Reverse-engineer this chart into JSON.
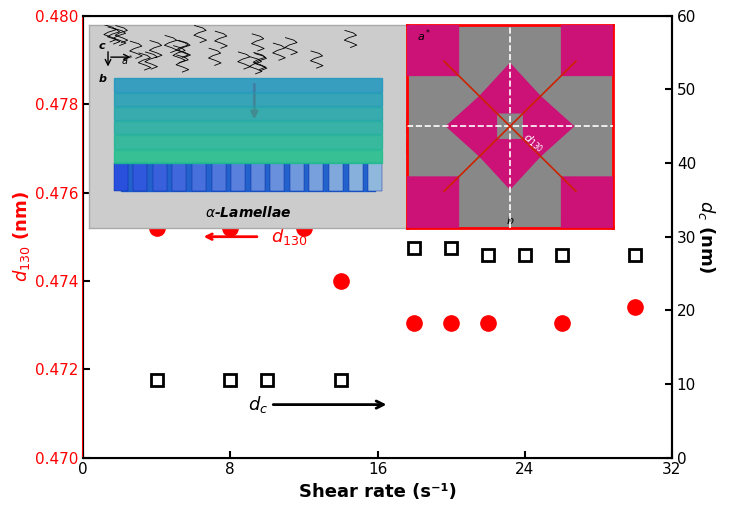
{
  "shear_rate_d130": [
    4,
    8,
    12,
    14,
    18,
    20,
    22,
    26,
    30
  ],
  "d130_values": [
    0.4752,
    0.4752,
    0.4752,
    0.474,
    0.47305,
    0.47305,
    0.47305,
    0.47305,
    0.4734
  ],
  "shear_rate_dc": [
    4,
    8,
    10,
    14,
    18,
    20,
    22,
    24,
    26,
    30
  ],
  "dc_values": [
    10.5,
    10.5,
    10.5,
    10.5,
    28.5,
    28.5,
    27.5,
    27.5,
    27.5,
    27.5
  ],
  "xlim": [
    0,
    32
  ],
  "ylim_left": [
    0.47,
    0.48
  ],
  "ylim_right": [
    0,
    60
  ],
  "xlabel": "Shear rate (s⁻¹)",
  "xticks": [
    0,
    8,
    16,
    24,
    32
  ],
  "yticks_left": [
    0.47,
    0.472,
    0.474,
    0.476,
    0.478,
    0.48
  ],
  "yticks_right": [
    0,
    10,
    20,
    30,
    40,
    50,
    60
  ],
  "red_color": "#FF0000",
  "black_color": "#000000",
  "bg_color": "#FFFFFF",
  "pink_color": "#CC1177",
  "gray_color": "#888888",
  "inset_bg": "#DDDDDD"
}
